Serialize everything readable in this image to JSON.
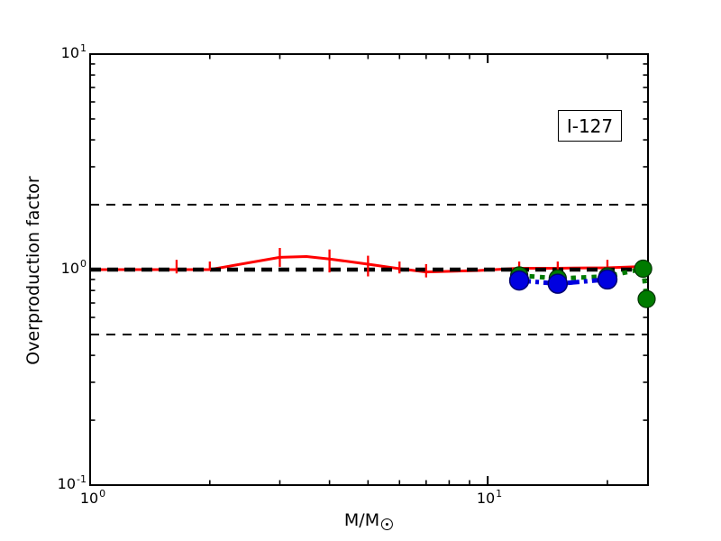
{
  "figure": {
    "annotation": "I-127",
    "ylabel": "Overproduction factor",
    "xlabel_base": "M/M",
    "xlabel_subscript_icon": "sun-symbol",
    "x_tick_labels": [
      {
        "base": "10",
        "exp": "0"
      },
      {
        "base": "10",
        "exp": "1"
      }
    ],
    "y_tick_labels": [
      {
        "base": "10",
        "exp": "1"
      },
      {
        "base": "10",
        "exp": "0"
      },
      {
        "base": "10",
        "exp": "-1"
      }
    ]
  },
  "colors": {
    "red_series": "#ff0000",
    "green_series": "#007b00",
    "blue_series": "#0000e0",
    "reference": "#000000",
    "frame": "#000000",
    "background": "#ffffff"
  },
  "chart_data": {
    "type": "line",
    "title": "",
    "annotation": "I-127",
    "xlabel": "M/M_sun",
    "ylabel": "Overproduction factor",
    "x_scale": "log",
    "y_scale": "log",
    "xlim": [
      1,
      25.3
    ],
    "ylim": [
      0.1,
      10
    ],
    "grid": false,
    "legend": "none",
    "reference_lines": [
      {
        "y": 2,
        "style": "dashed",
        "width": 2
      },
      {
        "y": 1,
        "style": "dashed",
        "width": 4.5
      },
      {
        "y": 0.5,
        "style": "dashed",
        "width": 2
      }
    ],
    "series": [
      {
        "name": "red-solid-errorbars",
        "color": "#ff0000",
        "linestyle": "solid",
        "linewidth": 3,
        "marker": "none",
        "x": [
          1,
          1.65,
          2,
          3,
          3.5,
          4,
          5,
          6,
          7,
          9.5,
          12,
          15,
          20,
          25.3
        ],
        "y": [
          1.0,
          1.0,
          1.0,
          1.14,
          1.15,
          1.12,
          1.06,
          1.01,
          0.975,
          0.99,
          1.015,
          1.015,
          1.02,
          1.035
        ],
        "error_bars": {
          "x": [
            1.65,
            2,
            3,
            4,
            5,
            6,
            7,
            12,
            15,
            20
          ],
          "lo": [
            0.96,
            0.99,
            1.03,
            0.97,
            0.93,
            0.96,
            0.92,
            0.94,
            0.94,
            0.94
          ],
          "hi": [
            1.11,
            1.09,
            1.26,
            1.24,
            1.16,
            1.09,
            1.06,
            1.09,
            1.09,
            1.11
          ]
        }
      },
      {
        "name": "green-dotted-circles",
        "color": "#007b00",
        "linestyle": "dotted",
        "linewidth": 5,
        "marker": "circle",
        "markerradius": 9.5,
        "x": [
          12,
          15,
          20,
          24.6,
          25.1
        ],
        "y": [
          0.94,
          0.91,
          0.93,
          1.01,
          0.73
        ]
      },
      {
        "name": "blue-dashdot-circles",
        "color": "#0000e0",
        "linestyle": "dashdot",
        "linewidth": 5,
        "marker": "circle",
        "markerradius": 10.5,
        "x": [
          12,
          15,
          20
        ],
        "y": [
          0.89,
          0.86,
          0.9
        ]
      }
    ]
  }
}
